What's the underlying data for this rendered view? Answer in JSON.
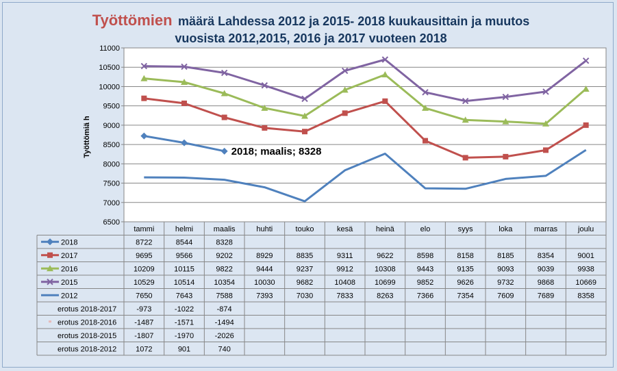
{
  "chart_data": {
    "type": "line",
    "title_highlight": "Työttömien",
    "title_rest": "määrä Lahdessa 2012 ja 2015- 2018 kuukausittain ja muutos",
    "title_line2": "vuosista 2012,2015, 2016 ja 2017 vuoteen 2018",
    "ylabel": "Työttömiä h",
    "ylim": [
      6500,
      11000
    ],
    "yticks": [
      "6500",
      "7000",
      "7500",
      "8000",
      "8500",
      "9000",
      "9500",
      "10000",
      "10500",
      "11000"
    ],
    "categories": [
      "tammi",
      "helmi",
      "maalis",
      "huhti",
      "touko",
      "kesä",
      "heinä",
      "elo",
      "syys",
      "loka",
      "marras",
      "joulu"
    ],
    "series": [
      {
        "name": "2018",
        "color": "#4f81bd",
        "marker": "diamond",
        "values": [
          8722,
          8544,
          8328,
          null,
          null,
          null,
          null,
          null,
          null,
          null,
          null,
          null
        ]
      },
      {
        "name": "2017",
        "color": "#c0504d",
        "marker": "square",
        "values": [
          9695,
          9566,
          9202,
          8929,
          8835,
          9311,
          9622,
          8598,
          8158,
          8185,
          8354,
          9001
        ]
      },
      {
        "name": "2016",
        "color": "#9bbb59",
        "marker": "triangle",
        "values": [
          10209,
          10115,
          9822,
          9444,
          9237,
          9912,
          10308,
          9443,
          9135,
          9093,
          9039,
          9938
        ]
      },
      {
        "name": "2015",
        "color": "#8064a2",
        "marker": "x",
        "values": [
          10529,
          10514,
          10354,
          10030,
          9682,
          10408,
          10699,
          9852,
          9626,
          9732,
          9868,
          10669
        ]
      },
      {
        "name": "2012",
        "color": "#4f81bd",
        "marker": "none",
        "values": [
          7650,
          7643,
          7588,
          7393,
          7030,
          7833,
          8263,
          7366,
          7354,
          7609,
          7689,
          8358
        ]
      }
    ],
    "extra_rows": [
      {
        "name": "erotus 2018-2017",
        "values": [
          "-973",
          "-1022",
          "-874"
        ]
      },
      {
        "name": "erotus 2018-2016",
        "values": [
          "-1487",
          "-1571",
          "-1494"
        ]
      },
      {
        "name": "erotus 2018-2015",
        "values": [
          "-1807",
          "-1970",
          "-2026"
        ]
      },
      {
        "name": "erotus 2018-2012",
        "values": [
          "1072",
          "901",
          "740"
        ]
      }
    ],
    "annotation": "2018; maalis; 8328",
    "grid": true,
    "legend": "data-table"
  }
}
